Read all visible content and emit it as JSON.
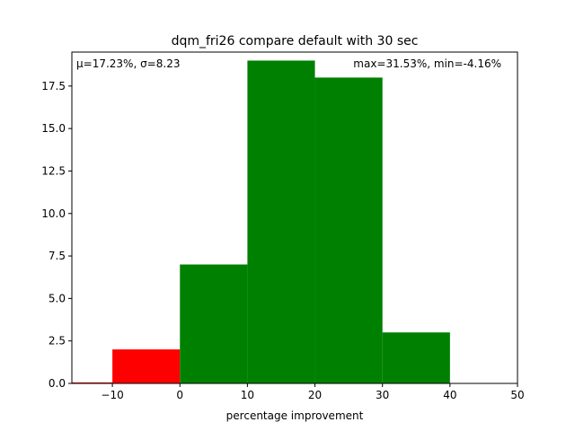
{
  "chart_data": {
    "type": "bar",
    "title": "dqm_fri26 compare default with 30 sec",
    "xlabel": "percentage improvement",
    "ylabel": "",
    "xlim": [
      -16,
      50
    ],
    "ylim": [
      0,
      19.5
    ],
    "grid": false,
    "x_ticks": [
      -10,
      0,
      10,
      20,
      30,
      40,
      50
    ],
    "y_ticks": [
      0.0,
      2.5,
      5.0,
      7.5,
      10.0,
      12.5,
      15.0,
      17.5
    ],
    "x_tick_labels": [
      "−10",
      "0",
      "10",
      "20",
      "30",
      "40",
      "50"
    ],
    "y_tick_labels": [
      "0.0",
      "2.5",
      "5.0",
      "7.5",
      "10.0",
      "12.5",
      "15.0",
      "17.5"
    ],
    "bins": [
      {
        "start": -10,
        "end": 0,
        "count": 2,
        "color": "#ff0000"
      },
      {
        "start": 0,
        "end": 10,
        "count": 7,
        "color": "#008000"
      },
      {
        "start": 10,
        "end": 20,
        "count": 19,
        "color": "#008000"
      },
      {
        "start": 20,
        "end": 30,
        "count": 18,
        "color": "#008000"
      },
      {
        "start": 30,
        "end": 40,
        "count": 3,
        "color": "#008000"
      }
    ],
    "annotations": {
      "stats_mu": "μ=17.23%, ",
      "stats_sigma": "σ=8.23",
      "range": "max=31.53%, min=-4.16%"
    }
  }
}
